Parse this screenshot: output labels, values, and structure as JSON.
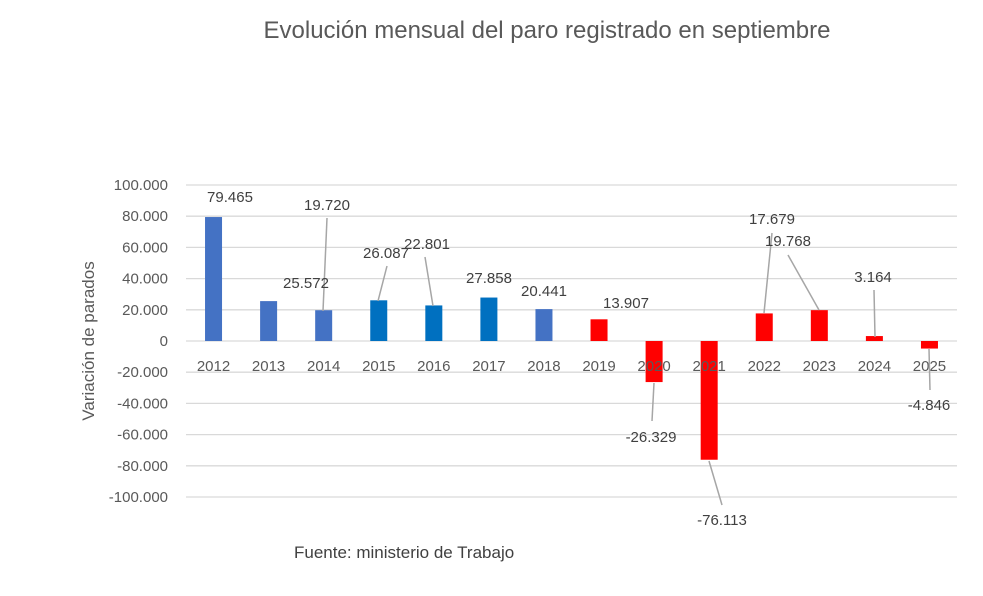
{
  "chart_data": {
    "type": "bar",
    "title": "Evolución mensual del paro registrado en septiembre",
    "xlabel": "",
    "ylabel": "Variación de parados",
    "source": "Fuente: ministerio de Trabajo",
    "categories": [
      "2012",
      "2013",
      "2014",
      "2015",
      "2016",
      "2017",
      "2018",
      "2019",
      "2020",
      "2021",
      "2022",
      "2023",
      "2024",
      "2025"
    ],
    "values": [
      79465,
      25572,
      19720,
      26087,
      22801,
      27858,
      20441,
      13907,
      -26329,
      -76113,
      17679,
      19768,
      3164,
      -4846
    ],
    "data_labels": [
      "79.465",
      "25.572",
      "19.720",
      "26.087",
      "22.801",
      "27.858",
      "20.441",
      "13.907",
      "-26.329",
      "-76.113",
      "17.679",
      "19.768",
      "3.164",
      "-4.846"
    ],
    "bar_colors": [
      "#4472C4",
      "#4472C4",
      "#4472C4",
      "#0070C0",
      "#0070C0",
      "#0070C0",
      "#4472C4",
      "#FF0000",
      "#FF0000",
      "#FF0000",
      "#FF0000",
      "#FF0000",
      "#FF0000",
      "#FF0000"
    ],
    "ylim": [
      -100000,
      100000
    ],
    "yticks": [
      100000,
      80000,
      60000,
      40000,
      20000,
      0,
      -20000,
      -40000,
      -60000,
      -80000,
      -100000
    ],
    "ytick_labels": [
      "100.000",
      "80.000",
      "60.000",
      "40.000",
      "20.000",
      "0",
      "-20.000",
      "-40.000",
      "-60.000",
      "-80.000",
      "-100.000"
    ],
    "grid": true,
    "legend": "none"
  }
}
